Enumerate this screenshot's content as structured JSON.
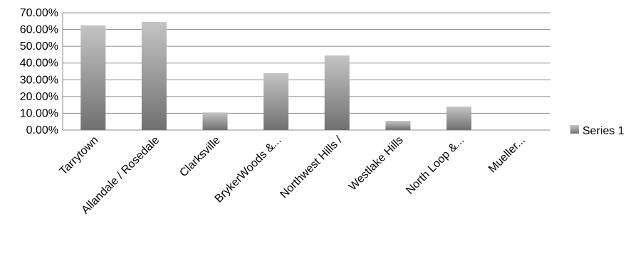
{
  "chart_data": {
    "type": "bar",
    "title": "",
    "xlabel": "",
    "ylabel": "",
    "categories": [
      "Tarrytown",
      "Allandale / Rosedale",
      "Clarksville",
      "BrykerWoods &...",
      "Northwest Hills /",
      "Westlake Hills",
      "North Loop &...",
      "Mueller..."
    ],
    "series": [
      {
        "name": "Series 1",
        "values": [
          62.5,
          64.5,
          10.5,
          34.0,
          44.5,
          5.5,
          14.0,
          0.0
        ]
      }
    ],
    "ylim": [
      0,
      70
    ],
    "yticks": [
      0,
      10,
      20,
      30,
      40,
      50,
      60,
      70
    ],
    "ytick_labels": [
      "0.00%",
      "10.00%",
      "20.00%",
      "30.00%",
      "40.00%",
      "50.00%",
      "60.00%",
      "70.00%"
    ],
    "grid": true,
    "legend_position": "right",
    "colors": {
      "bar_light": "#c4c4c4",
      "bar_dark": "#707070",
      "grid": "#8c8c8c"
    }
  }
}
